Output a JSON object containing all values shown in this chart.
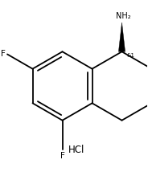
{
  "background_color": "#ffffff",
  "line_color": "#000000",
  "text_color": "#000000",
  "figure_width": 1.84,
  "figure_height": 2.14,
  "dpi": 100,
  "NH2_label": "NH₂",
  "F_label": "F",
  "stereo_label": "&1",
  "HCl_label": "HCl",
  "lw": 1.3
}
